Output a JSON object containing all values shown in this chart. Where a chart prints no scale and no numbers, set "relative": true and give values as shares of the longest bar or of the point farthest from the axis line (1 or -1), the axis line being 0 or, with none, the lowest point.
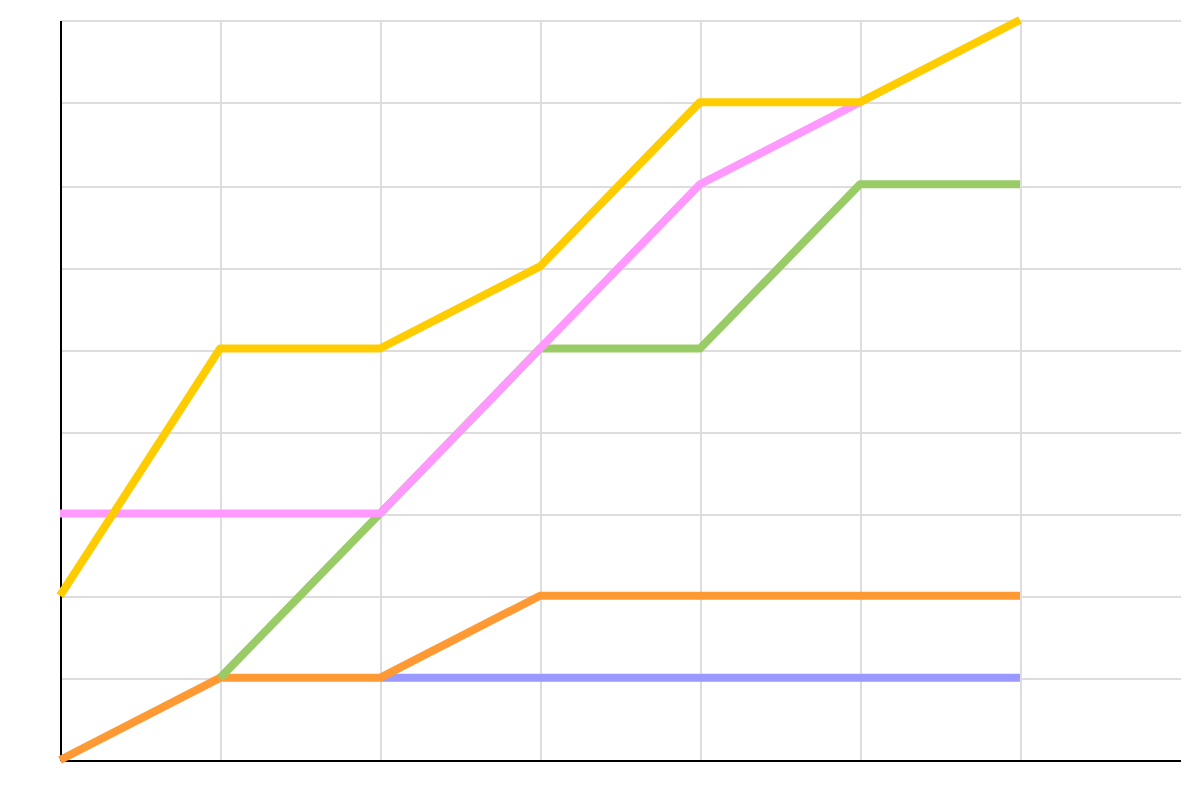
{
  "chart_data": {
    "type": "line",
    "relative": true,
    "grid": true,
    "marker": "none",
    "line_style": "solid",
    "categories": [
      null,
      null,
      null,
      null,
      null,
      null,
      null
    ],
    "series": [
      {
        "color": "#9999ff",
        "values": [
          null,
          null,
          0.111,
          0.111,
          0.111,
          0.111,
          0.111
        ]
      },
      {
        "color": "#ff9933",
        "values": [
          0,
          0.111,
          0.111,
          0.222,
          0.222,
          0.222,
          0.222
        ]
      },
      {
        "color": "#99cc66",
        "values": [
          null,
          0.111,
          0.333,
          0.556,
          0.556,
          0.778,
          0.778
        ]
      },
      {
        "color": "#ff99ff",
        "values": [
          0.333,
          0.333,
          0.333,
          0.556,
          0.778,
          0.889,
          null
        ]
      },
      {
        "color": "#ffcc00",
        "values": [
          0.222,
          0.556,
          0.556,
          0.667,
          0.889,
          0.889,
          1
        ]
      }
    ]
  }
}
